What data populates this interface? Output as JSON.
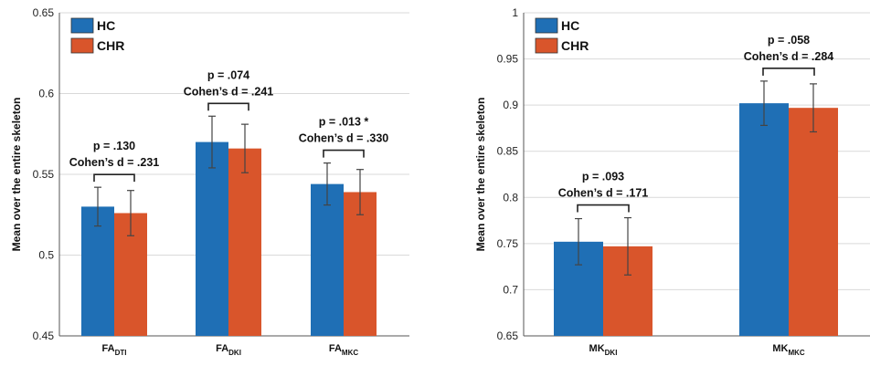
{
  "legend": {
    "items": [
      "HC",
      "CHR"
    ]
  },
  "colors": {
    "HC": "#1f6fb5",
    "CHR": "#d9552b",
    "axis": "#555555",
    "grid": "#d9d9d9",
    "error": "#444444"
  },
  "chart_data": [
    {
      "type": "bar",
      "ylabel": "Mean over the entire skeleton",
      "ylim": [
        0.45,
        0.65
      ],
      "yticks": [
        "0.45",
        "0.5",
        "0.55",
        "0.6",
        "0.65"
      ],
      "grid": true,
      "legend_position": "top-left",
      "categories": [
        {
          "base": "FA",
          "sub": "DTI"
        },
        {
          "base": "FA",
          "sub": "DKI"
        },
        {
          "base": "FA",
          "sub": "MKC"
        }
      ],
      "series": [
        {
          "name": "HC",
          "values": [
            0.53,
            0.57,
            0.544
          ],
          "errors": [
            0.012,
            0.016,
            0.013
          ]
        },
        {
          "name": "CHR",
          "values": [
            0.526,
            0.566,
            0.539
          ],
          "errors": [
            0.014,
            0.015,
            0.014
          ]
        }
      ],
      "annotations": [
        {
          "p": "p = .130",
          "d": "Cohen’s d = .231"
        },
        {
          "p": "p = .074",
          "d": "Cohen’s d = .241"
        },
        {
          "p": "p = .013 *",
          "d": "Cohen’s d = .330"
        }
      ]
    },
    {
      "type": "bar",
      "ylabel": "Mean over the entire skeleton",
      "ylim": [
        0.65,
        1.0
      ],
      "yticks": [
        "0.65",
        "0.7",
        "0.75",
        "0.8",
        "0.85",
        "0.9",
        "0.95",
        "1"
      ],
      "grid": true,
      "legend_position": "top-left",
      "categories": [
        {
          "base": "MK",
          "sub": "DKI"
        },
        {
          "base": "MK",
          "sub": "MKC"
        }
      ],
      "series": [
        {
          "name": "HC",
          "values": [
            0.752,
            0.902
          ],
          "errors": [
            0.025,
            0.024
          ]
        },
        {
          "name": "CHR",
          "values": [
            0.747,
            0.897
          ],
          "errors": [
            0.031,
            0.026
          ]
        }
      ],
      "annotations": [
        {
          "p": "p = .093",
          "d": "Cohen’s d = .171"
        },
        {
          "p": "p = .058",
          "d": "Cohen’s d = .284"
        }
      ]
    }
  ]
}
